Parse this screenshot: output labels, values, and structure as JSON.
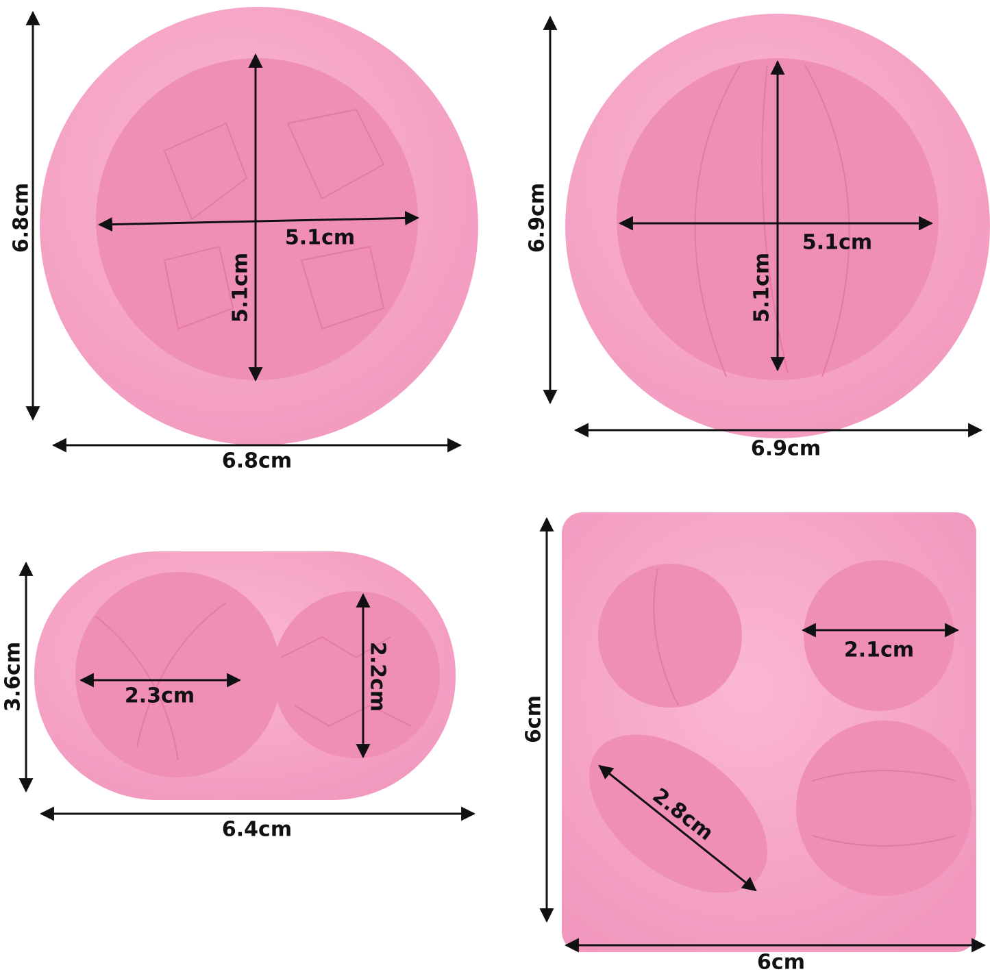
{
  "molds": [
    {
      "width": "6.8cm",
      "height": "6.8cm",
      "cavity_width": "5.1cm",
      "cavity_height": "5.1cm"
    },
    {
      "width": "6.9cm",
      "height": "6.9cm",
      "cavity_width": "5.1cm",
      "cavity_height": "5.1cm"
    },
    {
      "width": "6.4cm",
      "height": "3.6cm",
      "cavity_1_width": "2.3cm",
      "cavity_2_height": "2.2cm"
    },
    {
      "width": "6cm",
      "height": "6cm",
      "cavity_width": "2.1cm",
      "cavity_diagonal": "2.8cm"
    }
  ]
}
